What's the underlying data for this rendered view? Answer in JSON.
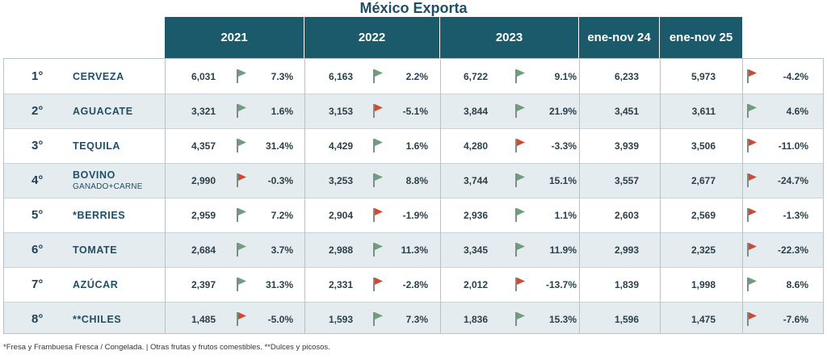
{
  "title": "México Exporta",
  "headers": [
    "2021",
    "2022",
    "2023",
    "ene-nov 24",
    "ene-nov 25"
  ],
  "flag_colors": {
    "up": "#6e9e7c",
    "down": "#d04a32"
  },
  "rows": [
    {
      "rank": "1°",
      "name": "CERVEZA",
      "sub": "",
      "v2021": "6,031",
      "p2021": "7.3%",
      "f2021": "up",
      "v2022": "6,163",
      "p2022": "2.2%",
      "f2022": "up",
      "v2023": "6,722",
      "p2023": "9.1%",
      "f2023": "up",
      "v24": "6,233",
      "v25": "5,973",
      "p25": "-4.2%",
      "f25": "down"
    },
    {
      "rank": "2°",
      "name": "AGUACATE",
      "sub": "",
      "v2021": "3,321",
      "p2021": "1.6%",
      "f2021": "up",
      "v2022": "3,153",
      "p2022": "-5.1%",
      "f2022": "down",
      "v2023": "3,844",
      "p2023": "21.9%",
      "f2023": "up",
      "v24": "3,451",
      "v25": "3,611",
      "p25": "4.6%",
      "f25": "up"
    },
    {
      "rank": "3°",
      "name": "TEQUILA",
      "sub": "",
      "v2021": "4,357",
      "p2021": "31.4%",
      "f2021": "up",
      "v2022": "4,429",
      "p2022": "1.6%",
      "f2022": "up",
      "v2023": "4,280",
      "p2023": "-3.3%",
      "f2023": "down",
      "v24": "3,939",
      "v25": "3,506",
      "p25": "-11.0%",
      "f25": "down"
    },
    {
      "rank": "4°",
      "name": "BOVINO",
      "sub": "GANADO+CARNE",
      "v2021": "2,990",
      "p2021": "-0.3%",
      "f2021": "down",
      "v2022": "3,253",
      "p2022": "8.8%",
      "f2022": "up",
      "v2023": "3,744",
      "p2023": "15.1%",
      "f2023": "up",
      "v24": "3,557",
      "v25": "2,677",
      "p25": "-24.7%",
      "f25": "down"
    },
    {
      "rank": "5°",
      "name": "*BERRIES",
      "sub": "",
      "v2021": "2,959",
      "p2021": "7.2%",
      "f2021": "up",
      "v2022": "2,904",
      "p2022": "-1.9%",
      "f2022": "down",
      "v2023": "2,936",
      "p2023": "1.1%",
      "f2023": "up",
      "v24": "2,603",
      "v25": "2,569",
      "p25": "-1.3%",
      "f25": "down"
    },
    {
      "rank": "6°",
      "name": "TOMATE",
      "sub": "",
      "v2021": "2,684",
      "p2021": "3.7%",
      "f2021": "up",
      "v2022": "2,988",
      "p2022": "11.3%",
      "f2022": "up",
      "v2023": "3,345",
      "p2023": "11.9%",
      "f2023": "up",
      "v24": "2,993",
      "v25": "2,325",
      "p25": "-22.3%",
      "f25": "down"
    },
    {
      "rank": "7°",
      "name": "AZÚCAR",
      "sub": "",
      "v2021": "2,397",
      "p2021": "31.3%",
      "f2021": "up",
      "v2022": "2,331",
      "p2022": "-2.8%",
      "f2022": "down",
      "v2023": "2,012",
      "p2023": "-13.7%",
      "f2023": "down",
      "v24": "1,839",
      "v25": "1,998",
      "p25": "8.6%",
      "f25": "up"
    },
    {
      "rank": "8°",
      "name": "**CHILES",
      "sub": "",
      "v2021": "1,485",
      "p2021": "-5.0%",
      "f2021": "down",
      "v2022": "1,593",
      "p2022": "7.3%",
      "f2022": "up",
      "v2023": "1,836",
      "p2023": "15.3%",
      "f2023": "up",
      "v24": "1,596",
      "v25": "1,475",
      "p25": "-7.6%",
      "f25": "down"
    }
  ],
  "footnote": "*Fresa y Frambuesa Fresca / Congelada. | Otras frutas y frutos comestibles. **Dulces y picosos."
}
